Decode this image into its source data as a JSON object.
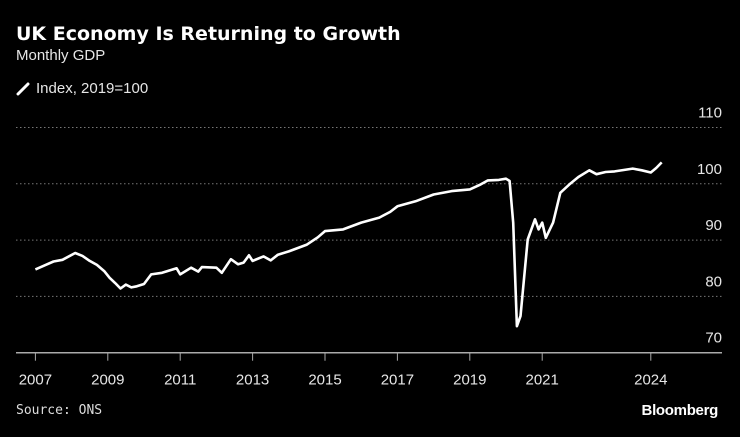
{
  "header": {
    "title": "UK Economy Is Returning to Growth",
    "subtitle": "Monthly GDP",
    "legend_label": "Index, 2019=100",
    "legend_icon": "white-line-icon"
  },
  "footer": {
    "source": "Source: ONS",
    "logo": "Bloomberg"
  },
  "colors": {
    "background": "#000000",
    "line": "#ffffff",
    "grid": "#777777"
  },
  "chart_data": {
    "type": "line",
    "title": "UK Economy Is Returning to Growth",
    "subtitle": "Monthly GDP",
    "ylabel": "Index, 2019=100",
    "xlim": [
      2006.5,
      2026.0
    ],
    "ylim": [
      70,
      110
    ],
    "y_ticks": [
      70,
      80,
      90,
      100,
      110
    ],
    "y_tick_labels": [
      "70",
      "80",
      "90",
      "100",
      "110"
    ],
    "x_ticks": [
      2007,
      2009,
      2011,
      2013,
      2015,
      2017,
      2019,
      2021,
      2024
    ],
    "x_tick_labels": [
      "2007",
      "2009",
      "2011",
      "2013",
      "2015",
      "2017",
      "2019",
      "2021",
      "2024"
    ],
    "y_axis_position": "right",
    "grid": "horizontal dotted",
    "series": [
      {
        "name": "Index, 2019=100",
        "points": [
          [
            2007.0,
            84.8
          ],
          [
            2007.25,
            85.5
          ],
          [
            2007.5,
            86.2
          ],
          [
            2007.75,
            86.5
          ],
          [
            2008.1,
            87.7
          ],
          [
            2008.3,
            87.2
          ],
          [
            2008.5,
            86.3
          ],
          [
            2008.7,
            85.6
          ],
          [
            2008.9,
            84.5
          ],
          [
            2009.05,
            83.3
          ],
          [
            2009.2,
            82.4
          ],
          [
            2009.35,
            81.4
          ],
          [
            2009.5,
            82.1
          ],
          [
            2009.65,
            81.6
          ],
          [
            2009.8,
            81.8
          ],
          [
            2010.0,
            82.2
          ],
          [
            2010.2,
            83.9
          ],
          [
            2010.5,
            84.2
          ],
          [
            2010.9,
            85.0
          ],
          [
            2011.0,
            83.9
          ],
          [
            2011.3,
            85.1
          ],
          [
            2011.5,
            84.4
          ],
          [
            2011.6,
            85.2
          ],
          [
            2012.0,
            85.1
          ],
          [
            2012.15,
            84.2
          ],
          [
            2012.4,
            86.6
          ],
          [
            2012.6,
            85.7
          ],
          [
            2012.75,
            86.0
          ],
          [
            2012.9,
            87.3
          ],
          [
            2013.0,
            86.3
          ],
          [
            2013.3,
            87.1
          ],
          [
            2013.5,
            86.4
          ],
          [
            2013.7,
            87.4
          ],
          [
            2014.0,
            88.0
          ],
          [
            2014.5,
            89.2
          ],
          [
            2014.8,
            90.5
          ],
          [
            2015.0,
            91.6
          ],
          [
            2015.5,
            91.9
          ],
          [
            2016.0,
            93.1
          ],
          [
            2016.5,
            94.0
          ],
          [
            2016.8,
            95.0
          ],
          [
            2017.0,
            96.0
          ],
          [
            2017.5,
            96.9
          ],
          [
            2018.0,
            98.1
          ],
          [
            2018.5,
            98.7
          ],
          [
            2019.0,
            99.0
          ],
          [
            2019.3,
            99.9
          ],
          [
            2019.5,
            100.6
          ],
          [
            2019.8,
            100.7
          ],
          [
            2020.0,
            100.9
          ],
          [
            2020.1,
            100.5
          ],
          [
            2020.2,
            93.1
          ],
          [
            2020.3,
            74.7
          ],
          [
            2020.4,
            76.5
          ],
          [
            2020.6,
            90.1
          ],
          [
            2020.8,
            93.7
          ],
          [
            2020.9,
            91.9
          ],
          [
            2021.0,
            93.1
          ],
          [
            2021.1,
            90.4
          ],
          [
            2021.3,
            93.1
          ],
          [
            2021.5,
            98.4
          ],
          [
            2021.75,
            99.9
          ],
          [
            2022.0,
            101.2
          ],
          [
            2022.3,
            102.4
          ],
          [
            2022.5,
            101.7
          ],
          [
            2022.75,
            102.1
          ],
          [
            2023.0,
            102.2
          ],
          [
            2023.5,
            102.7
          ],
          [
            2023.75,
            102.4
          ],
          [
            2024.0,
            102.0
          ],
          [
            2024.15,
            102.8
          ],
          [
            2024.3,
            103.8
          ]
        ]
      }
    ]
  }
}
